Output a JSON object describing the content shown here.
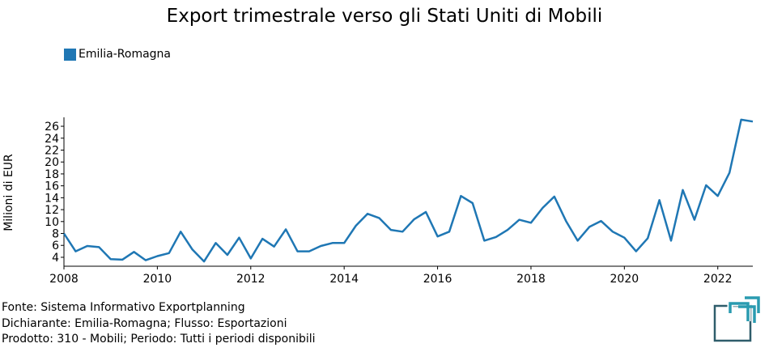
{
  "title": "Export trimestrale verso gli Stati Uniti di Mobili",
  "legend": {
    "label": "Emilia-Romagna",
    "color": "#1f77b4"
  },
  "footer": {
    "line1": "Fonte: Sistema Informativo Exportplanning",
    "line2": "Dichiarante: Emilia-Romagna; Flusso: Esportazioni",
    "line3": "Prodotto: 310 - Mobili; Periodo: Tutti i periodi disponibili"
  },
  "logo": {
    "icon": "exportplanning-logo-icon",
    "colors": [
      "#2f5d6b",
      "#2a9bb0"
    ]
  },
  "chart_data": {
    "type": "line",
    "title": "Export trimestrale verso gli Stati Uniti di Mobili",
    "ylabel": "Milioni di EUR",
    "xlabel": "",
    "xlim": [
      2008,
      2022.75
    ],
    "ylim": [
      2.5,
      27.5
    ],
    "xticks": [
      2008,
      2010,
      2012,
      2014,
      2016,
      2018,
      2020,
      2022
    ],
    "yticks": [
      4,
      6,
      8,
      10,
      12,
      14,
      16,
      18,
      20,
      22,
      24,
      26
    ],
    "grid": false,
    "legend_position": "top-left",
    "series": [
      {
        "name": "Emilia-Romagna",
        "color": "#1f77b4",
        "x": [
          2008,
          2008.25,
          2008.5,
          2008.75,
          2009,
          2009.25,
          2009.5,
          2009.75,
          2010,
          2010.25,
          2010.5,
          2010.75,
          2011,
          2011.25,
          2011.5,
          2011.75,
          2012,
          2012.25,
          2012.5,
          2012.75,
          2013,
          2013.25,
          2013.5,
          2013.75,
          2014,
          2014.25,
          2014.5,
          2014.75,
          2015,
          2015.25,
          2015.5,
          2015.75,
          2016,
          2016.25,
          2016.5,
          2016.75,
          2017,
          2017.25,
          2017.5,
          2017.75,
          2018,
          2018.25,
          2018.5,
          2018.75,
          2019,
          2019.25,
          2019.5,
          2019.75,
          2020,
          2020.25,
          2020.5,
          2020.75,
          2021,
          2021.25,
          2021.5,
          2021.75,
          2022,
          2022.25,
          2022.5,
          2022.75
        ],
        "values": [
          8.0,
          5.0,
          5.9,
          5.7,
          3.7,
          3.6,
          4.9,
          3.5,
          4.2,
          4.7,
          8.3,
          5.3,
          3.3,
          6.4,
          4.4,
          7.3,
          3.8,
          7.1,
          5.8,
          8.7,
          5.0,
          5.0,
          5.9,
          6.4,
          6.4,
          9.3,
          11.3,
          10.6,
          8.6,
          8.3,
          10.4,
          11.6,
          7.5,
          8.3,
          14.3,
          13.1,
          6.8,
          7.4,
          8.6,
          10.3,
          9.8,
          12.3,
          14.2,
          10.1,
          6.8,
          9.1,
          10.1,
          8.3,
          7.3,
          5.0,
          7.2,
          13.6,
          6.8,
          15.3,
          10.3,
          16.1,
          14.3,
          18.2,
          27.1,
          26.8
        ]
      }
    ]
  }
}
